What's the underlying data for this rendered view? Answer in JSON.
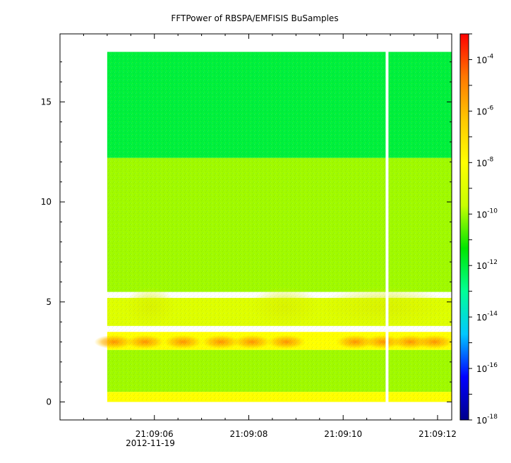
{
  "chart_data": {
    "type": "heatmap",
    "title": "FFTPower of RBSPA/EMFISIS  BuSamples",
    "xlabel": "",
    "ylabel": "",
    "x_ticks": [
      "21:09:06",
      "21:09:08",
      "21:09:10",
      "21:09:12"
    ],
    "x_date_label": "2012-11-19",
    "xlim": [
      "21:09:04.0",
      "21:09:12.3"
    ],
    "ylim": [
      -0.9,
      18.4
    ],
    "y_ticks": [
      "0",
      "5",
      "10",
      "15"
    ],
    "data_extent": {
      "time_start": "21:09:05.0",
      "time_end": "21:09:12.3",
      "y_min": 0,
      "y_max": 17.5
    },
    "data_gap": {
      "time": "21:09:10.9",
      "width_s": 0.06
    },
    "colorbar": {
      "scale": "log",
      "range": [
        1e-18,
        0.001
      ],
      "ticks": [
        {
          "base": "10",
          "exp": "-4"
        },
        {
          "base": "10",
          "exp": "-6"
        },
        {
          "base": "10",
          "exp": "-8"
        },
        {
          "base": "10",
          "exp": "-10"
        },
        {
          "base": "10",
          "exp": "-12"
        },
        {
          "base": "10",
          "exp": "-14"
        },
        {
          "base": "10",
          "exp": "-16"
        },
        {
          "base": "10",
          "exp": "-18"
        }
      ],
      "colors": [
        "#00008b",
        "#0000ff",
        "#00c8ff",
        "#00ff96",
        "#00e600",
        "#c8ff00",
        "#ffff00",
        "#ffc800",
        "#ff7800",
        "#ff0000"
      ]
    },
    "bands": [
      {
        "y_from": 12.2,
        "y_to": 17.5,
        "level": "1e-12"
      },
      {
        "y_from": 5.5,
        "y_to": 12.2,
        "level": "1e-10"
      },
      {
        "y_from": 3.8,
        "y_to": 5.2,
        "level": "1e-9"
      },
      {
        "y_from": 2.6,
        "y_to": 3.5,
        "level": "1e-8"
      },
      {
        "y_from": 0.5,
        "y_to": 2.6,
        "level": "1e-10"
      },
      {
        "y_from": 0.0,
        "y_to": 0.5,
        "level": "1e-8"
      }
    ],
    "grid": false
  }
}
